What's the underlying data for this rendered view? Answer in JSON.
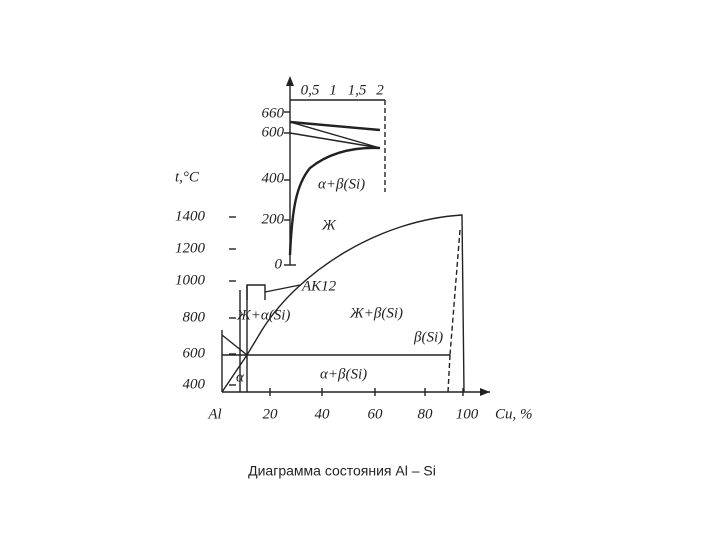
{
  "inset": {
    "x_ticks": [
      "0,5",
      "1",
      "1,5",
      "2"
    ],
    "y_ticks": [
      "660",
      "600",
      "400",
      "200",
      "0"
    ],
    "region": "α+β(Si)"
  },
  "main": {
    "y_label": "t,°C",
    "y_ticks": [
      "1400",
      "1200",
      "1000",
      "800",
      "600",
      "400"
    ],
    "x_ticks": [
      "Al",
      "20",
      "40",
      "60",
      "80",
      "100"
    ],
    "x_label": "Cu, %",
    "regions": [
      "Ж",
      "AK12",
      "Ж+α(Si)",
      "Ж+β(Si)",
      "β(Si)",
      "α",
      "α+β(Si)"
    ]
  },
  "caption": "Диаграмма состояния Al – Si"
}
